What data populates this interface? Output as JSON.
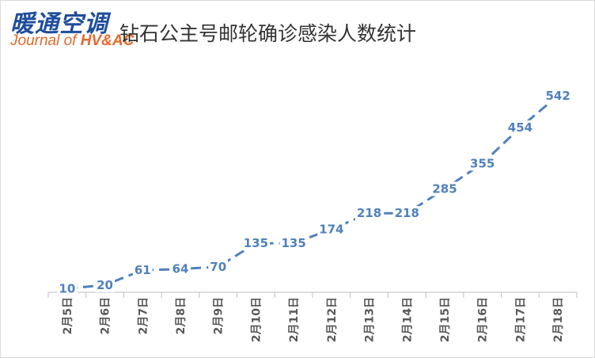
{
  "logo": {
    "cn": "暖通空调",
    "en_prefix": "Journal of ",
    "en_brand": "HV&AC"
  },
  "colors": {
    "line": "#4f81bd",
    "axis": "#bfbfbf",
    "tick_text": "#595959",
    "logo_cn": "#1f4e9c",
    "logo_en": "#e5682b"
  },
  "chart_data": {
    "type": "line",
    "title": "钻石公主号邮轮确诊感染人数统计",
    "categories": [
      "2月5日",
      "2月6日",
      "2月7日",
      "2月8日",
      "2月9日",
      "2月10日",
      "2月11日",
      "2月12日",
      "2月13日",
      "2月14日",
      "2月15日",
      "2月16日",
      "2月17日",
      "2月18日"
    ],
    "series": [
      {
        "values": [
          10,
          20,
          61,
          64,
          70,
          135,
          135,
          174,
          218,
          218,
          285,
          355,
          454,
          542
        ]
      }
    ],
    "line_style": "dashed",
    "data_labels": true,
    "grid": false,
    "legend": "none",
    "ylim": [
      0,
      600
    ]
  }
}
